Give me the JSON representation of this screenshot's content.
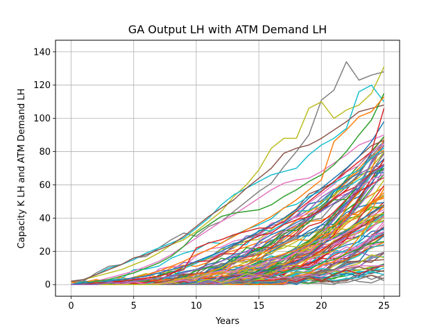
{
  "chart_data": {
    "type": "line",
    "title": "GA Output LH with ATM Demand LH",
    "xlabel": "Years",
    "ylabel": "Capacity K LH and ATM Demand LH",
    "xlim": [
      -1.25,
      26.25
    ],
    "ylim": [
      -7,
      147
    ],
    "xticks": [
      0,
      5,
      10,
      15,
      20,
      25
    ],
    "yticks": [
      0,
      20,
      40,
      60,
      80,
      100,
      120,
      140
    ],
    "grid": true,
    "x": [
      0,
      1,
      2,
      3,
      4,
      5,
      6,
      7,
      8,
      9,
      10,
      11,
      12,
      13,
      14,
      15,
      16,
      17,
      18,
      19,
      20,
      21,
      22,
      23,
      24,
      25
    ],
    "series_total_count": 120,
    "series_shown_with_values": 10,
    "series": [
      {
        "color": "#7f7f7f",
        "values": [
          2,
          2,
          7,
          11,
          12,
          16,
          17,
          22,
          27,
          31,
          29,
          35,
          38,
          44,
          50,
          56,
          61,
          71,
          80,
          90,
          111,
          117,
          134,
          123,
          126,
          128
        ]
      },
      {
        "color": "#bcbd22",
        "values": [
          2,
          3,
          5,
          7,
          9,
          12,
          15,
          19,
          24,
          27,
          32,
          38,
          44,
          53,
          60,
          69,
          82,
          88,
          88,
          106,
          110,
          100,
          105,
          108,
          115,
          131
        ]
      },
      {
        "color": "#17becf",
        "values": [
          2,
          3,
          6,
          10,
          12,
          15,
          19,
          22,
          25,
          28,
          34,
          40,
          48,
          54,
          58,
          62,
          66,
          68,
          70,
          78,
          84,
          88,
          94,
          116,
          120,
          110
        ]
      },
      {
        "color": "#8c564b",
        "values": [
          2,
          3,
          6,
          9,
          12,
          16,
          18,
          21,
          24,
          29,
          35,
          41,
          46,
          51,
          58,
          64,
          70,
          79,
          82,
          84,
          88,
          93,
          98,
          104,
          106,
          108
        ]
      },
      {
        "color": "#e377c2",
        "values": [
          0,
          1,
          2,
          4,
          6,
          8,
          11,
          14,
          18,
          23,
          28,
          33,
          38,
          42,
          47,
          52,
          57,
          61,
          63,
          64,
          68,
          73,
          78,
          84,
          87,
          90
        ]
      },
      {
        "color": "#2ca02c",
        "values": [
          0,
          1,
          2,
          3,
          5,
          7,
          10,
          13,
          17,
          23,
          31,
          36,
          41,
          43,
          44,
          45,
          48,
          53,
          57,
          62,
          66,
          72,
          80,
          90,
          99,
          115
        ]
      },
      {
        "color": "#ff7f0e",
        "values": [
          0,
          0,
          1,
          2,
          3,
          4,
          6,
          8,
          11,
          14,
          18,
          21,
          25,
          29,
          33,
          37,
          41,
          46,
          51,
          57,
          63,
          86,
          93,
          101,
          104,
          113
        ]
      },
      {
        "color": "#1f77b4",
        "values": [
          0,
          1,
          1,
          2,
          3,
          4,
          5,
          7,
          9,
          11,
          14,
          17,
          20,
          24,
          28,
          32,
          36,
          40,
          45,
          52,
          58,
          64,
          70,
          77,
          86,
          98
        ]
      },
      {
        "color": "#d62728",
        "values": [
          0,
          0,
          1,
          1,
          2,
          3,
          4,
          5,
          7,
          9,
          22,
          25,
          27,
          30,
          32,
          34,
          34,
          38,
          44,
          50,
          56,
          62,
          68,
          74,
          80,
          106
        ]
      },
      {
        "color": "#9467bd",
        "values": [
          0,
          0,
          0,
          1,
          1,
          2,
          3,
          4,
          5,
          7,
          9,
          11,
          14,
          17,
          20,
          24,
          28,
          32,
          36,
          40,
          44,
          49,
          54,
          60,
          66,
          72
        ]
      }
    ]
  }
}
